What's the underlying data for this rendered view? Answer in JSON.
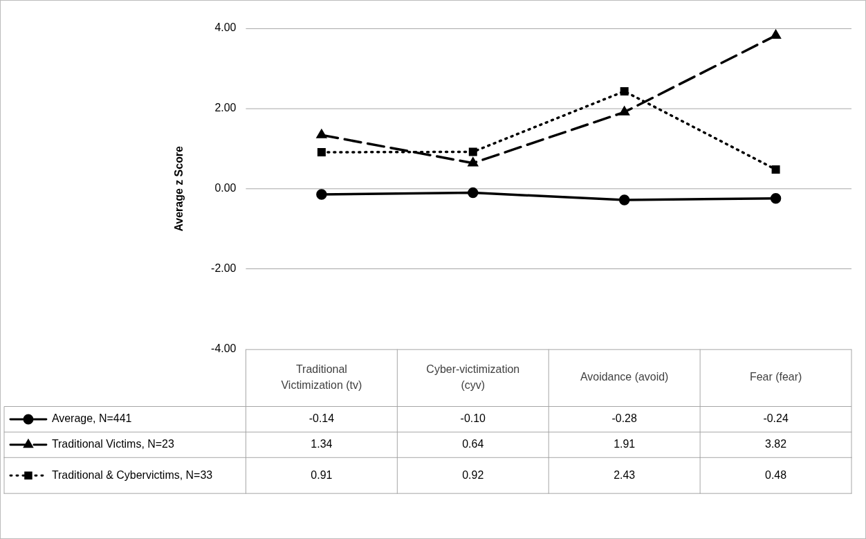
{
  "chart_data": {
    "type": "line",
    "ylabel": "Average z Score",
    "categories": [
      "Traditional Victimization (tv)",
      "Cyber-victimization (cyv)",
      "Avoidance (avoid)",
      "Fear (fear)"
    ],
    "series": [
      {
        "name": "Average, N=441",
        "color": "#000000",
        "marker": "circle",
        "line_style": "solid",
        "values": [
          -0.14,
          -0.1,
          -0.28,
          -0.24
        ],
        "value_labels": [
          "-0.14",
          "-0.10",
          "-0.28",
          "-0.24"
        ]
      },
      {
        "name": "Traditional Victims, N=23",
        "color": "#000000",
        "marker": "triangle",
        "line_style": "dashed",
        "values": [
          1.34,
          0.64,
          1.91,
          3.82
        ],
        "value_labels": [
          "1.34",
          "0.64",
          "1.91",
          "3.82"
        ]
      },
      {
        "name": "Traditional & Cybervictims, N=33",
        "color": "#000000",
        "marker": "square",
        "line_style": "dotted",
        "values": [
          0.91,
          0.92,
          2.43,
          0.48
        ],
        "value_labels": [
          "0.91",
          "0.92",
          "2.43",
          "0.48"
        ]
      }
    ],
    "ylim": [
      -4,
      4
    ],
    "yticks": [
      {
        "value": -4,
        "label": "-4.00"
      },
      {
        "value": -2,
        "label": "-2.00"
      },
      {
        "value": 0,
        "label": "0.00"
      },
      {
        "value": 2,
        "label": "2.00"
      },
      {
        "value": 4,
        "label": "4.00"
      }
    ],
    "grid": "y",
    "legend": "bottom"
  }
}
